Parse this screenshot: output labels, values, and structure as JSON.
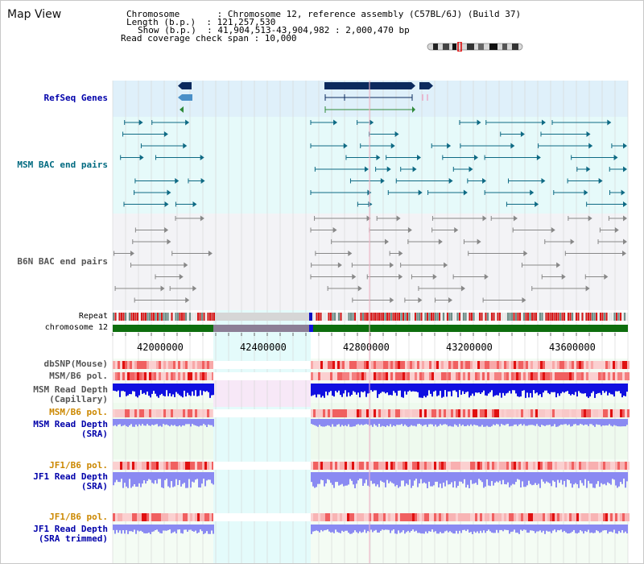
{
  "header": {
    "title": "Map View",
    "chromosome_line": "Chromosome       : Chromosome 12, reference assembly (C57BL/6J) (Build 37)",
    "length_line": "Length (b.p.)  : 121,257,530",
    "show_line": "Show (b.p.)  : 41,904,513-43,904,982 : 2,000,470 bp",
    "read_coverage_line": "Read coverage check span : 10,000"
  },
  "tracks": {
    "refseq_label": "RefSeq Genes",
    "msm_bac_label": "MSM BAC end pairs",
    "b6n_bac_label": "B6N BAC end pairs",
    "repeat_label": "Repeat",
    "chromosome_label": "chromosome 12",
    "dbsnp_label": "dbSNP(Mouse)",
    "msm_b6_pol_label": "MSM/B6 pol.",
    "msm_depth_cap_label_1": "MSM Read Depth",
    "msm_depth_cap_label_2": "(Capillary)",
    "msm_b6_pol_sra_label": "MSM/B6 pol.",
    "msm_depth_sra_label_1": "MSM Read Depth",
    "msm_depth_sra_label_2": "(SRA)",
    "jf1_pol_label": "JF1/B6 pol.",
    "jf1_depth_label_1": "JF1 Read Depth",
    "jf1_depth_label_2": "(SRA)",
    "jf1_pol_trim_label": "JF1/B6 pol.",
    "jf1_depth_trim_label_1": "JF1 Read Depth",
    "jf1_depth_trim_label_2": "(SRA trimmed)"
  },
  "axis": {
    "ticks": [
      "42000000",
      "42400000",
      "42800000",
      "43200000",
      "43600000"
    ]
  },
  "colors": {
    "refseq_bg": "#dff0fa",
    "msm_bg": "#e6fafa",
    "b6n_bg": "#f3f3f6",
    "gap_bg": "#e4fbfb",
    "gene_dark": "#0b2a5e",
    "gene_mid": "#4a90c8",
    "gene_green": "#2f8a3a",
    "msm_feature": "#0e6a84",
    "b6n_feature": "#888888",
    "chromosome_green": "#0e6e0e",
    "chromosome_gap": "#8c7f96",
    "depth_blue": "#1010e0",
    "depth_light_blue": "#8a8af2",
    "label_blue": "#0000aa",
    "label_orange": "#cc8800",
    "label_teal": "#006a80"
  }
}
